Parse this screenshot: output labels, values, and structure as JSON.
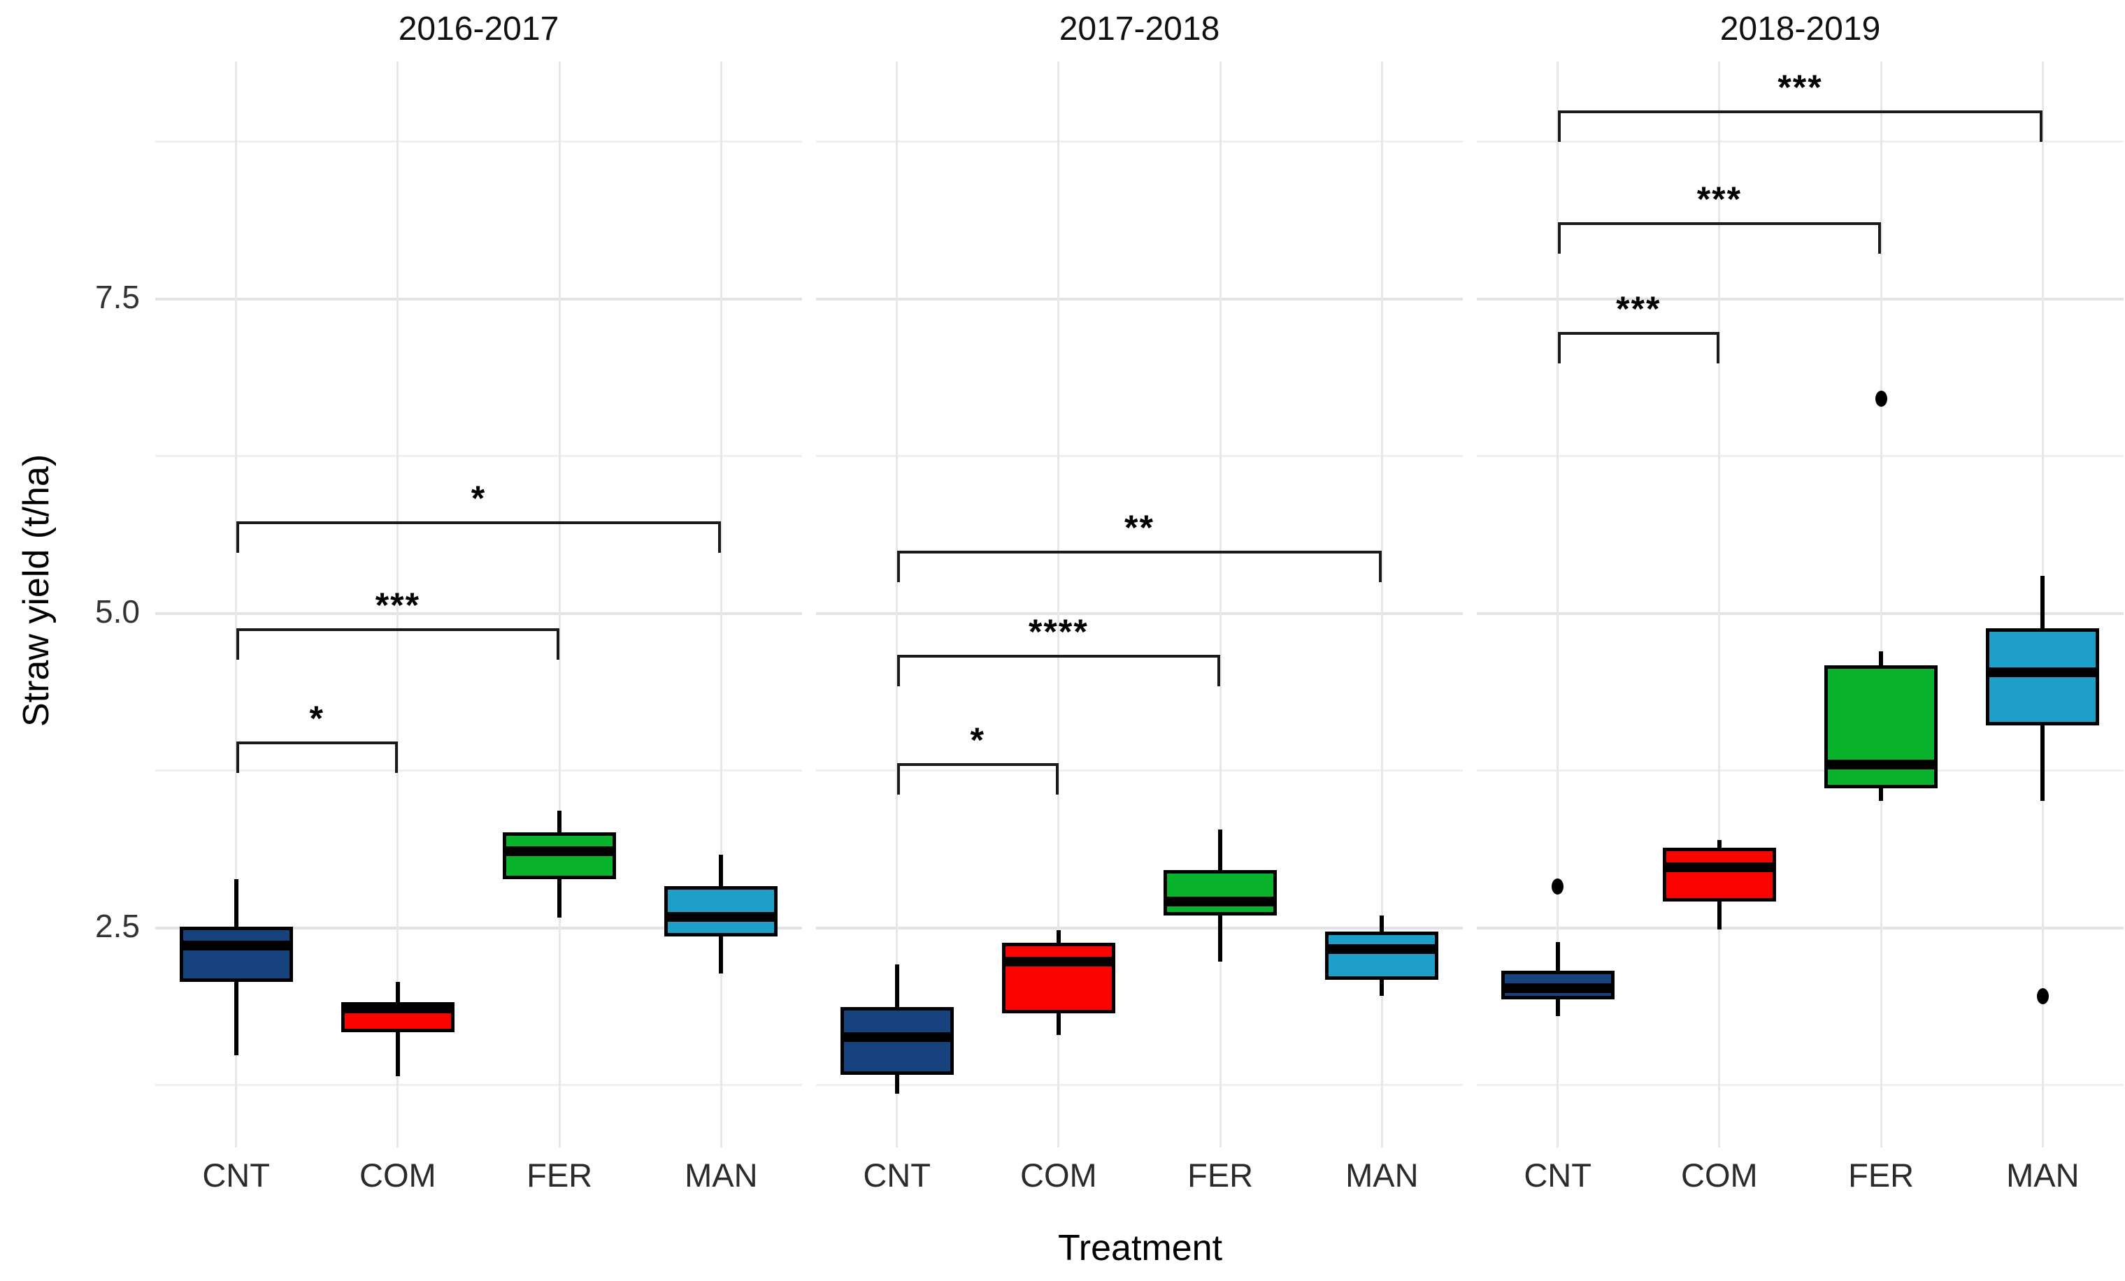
{
  "chart_data": {
    "type": "boxplot",
    "title": "",
    "xlabel": "Treatment",
    "ylabel": "Straw yield (t/ha)",
    "ylim": [
      0.74,
      9.38
    ],
    "grid": true,
    "y_ticks": [
      {
        "label": "7.5",
        "value": 7.5
      },
      {
        "label": "5.0",
        "value": 5.0
      },
      {
        "label": "2.5",
        "value": 2.5
      }
    ],
    "y_major_gridlines": [
      2.5,
      5.0,
      7.5
    ],
    "y_minor_gridlines": [
      1.25,
      3.75,
      6.25,
      8.75
    ],
    "categories": [
      "CNT",
      "COM",
      "FER",
      "MAN"
    ],
    "colors": {
      "CNT": "#16437E",
      "COM": "#FA0400",
      "FER": "#0AB32C",
      "MAN": "#1E9FC9"
    },
    "panels": [
      {
        "title": "2016-2017",
        "boxes": [
          {
            "category": "CNT",
            "whisker_low": 1.48,
            "q1": 2.06,
            "median": 2.35,
            "q3": 2.5,
            "whisker_high": 2.88,
            "outliers": []
          },
          {
            "category": "COM",
            "whisker_low": 1.31,
            "q1": 1.66,
            "median": 1.85,
            "q3": 1.9,
            "whisker_high": 2.06,
            "outliers": []
          },
          {
            "category": "FER",
            "whisker_low": 2.57,
            "q1": 2.88,
            "median": 3.1,
            "q3": 3.25,
            "whisker_high": 3.42,
            "outliers": []
          },
          {
            "category": "MAN",
            "whisker_low": 2.13,
            "q1": 2.42,
            "median": 2.58,
            "q3": 2.82,
            "whisker_high": 3.07,
            "outliers": []
          }
        ],
        "brackets": [
          {
            "group1": "CNT",
            "group2": "COM",
            "label": "*",
            "y": 3.97
          },
          {
            "group1": "CNT",
            "group2": "FER",
            "label": "***",
            "y": 4.87
          },
          {
            "group1": "CNT",
            "group2": "MAN",
            "label": "*",
            "y": 5.72
          }
        ]
      },
      {
        "title": "2017-2018",
        "boxes": [
          {
            "category": "CNT",
            "whisker_low": 1.17,
            "q1": 1.32,
            "median": 1.62,
            "q3": 1.86,
            "whisker_high": 2.2,
            "outliers": []
          },
          {
            "category": "COM",
            "whisker_low": 1.64,
            "q1": 1.81,
            "median": 2.22,
            "q3": 2.37,
            "whisker_high": 2.47,
            "outliers": []
          },
          {
            "category": "FER",
            "whisker_low": 2.22,
            "q1": 2.59,
            "median": 2.7,
            "q3": 2.95,
            "whisker_high": 3.27,
            "outliers": []
          },
          {
            "category": "MAN",
            "whisker_low": 1.95,
            "q1": 2.08,
            "median": 2.32,
            "q3": 2.46,
            "whisker_high": 2.59,
            "outliers": []
          }
        ],
        "brackets": [
          {
            "group1": "CNT",
            "group2": "COM",
            "label": "*",
            "y": 3.8
          },
          {
            "group1": "CNT",
            "group2": "FER",
            "label": "****",
            "y": 4.66
          },
          {
            "group1": "CNT",
            "group2": "MAN",
            "label": "**",
            "y": 5.49
          }
        ]
      },
      {
        "title": "2018-2019",
        "boxes": [
          {
            "category": "CNT",
            "whisker_low": 1.79,
            "q1": 1.92,
            "median": 2.01,
            "q3": 2.15,
            "whisker_high": 2.38,
            "outliers": [
              2.82
            ]
          },
          {
            "category": "COM",
            "whisker_low": 2.48,
            "q1": 2.7,
            "median": 2.97,
            "q3": 3.13,
            "whisker_high": 3.19,
            "outliers": []
          },
          {
            "category": "FER",
            "whisker_low": 3.5,
            "q1": 3.6,
            "median": 3.79,
            "q3": 4.58,
            "whisker_high": 4.69,
            "outliers": [
              6.7
            ]
          },
          {
            "category": "MAN",
            "whisker_low": 3.5,
            "q1": 4.1,
            "median": 4.52,
            "q3": 4.87,
            "whisker_high": 5.29,
            "outliers": [
              1.95
            ]
          }
        ],
        "brackets": [
          {
            "group1": "CNT",
            "group2": "COM",
            "label": "***",
            "y": 7.23
          },
          {
            "group1": "CNT",
            "group2": "FER",
            "label": "***",
            "y": 8.1
          },
          {
            "group1": "CNT",
            "group2": "MAN",
            "label": "***",
            "y": 8.99
          }
        ]
      }
    ]
  }
}
